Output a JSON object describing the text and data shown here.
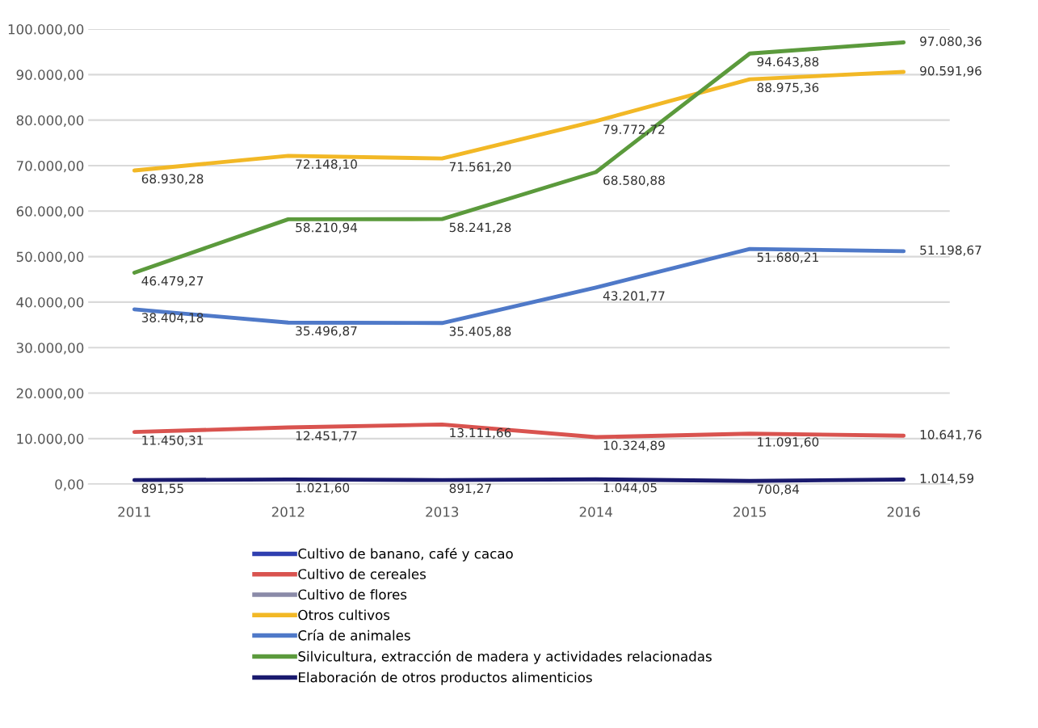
{
  "chart_data": {
    "type": "line",
    "categories": [
      "2011",
      "2012",
      "2013",
      "2014",
      "2015",
      "2016"
    ],
    "ylim": [
      0,
      100000
    ],
    "yticks": [
      {
        "value": 0,
        "label": "0,00"
      },
      {
        "value": 10000,
        "label": "10.000,00"
      },
      {
        "value": 20000,
        "label": "20.000,00"
      },
      {
        "value": 30000,
        "label": "30.000,00"
      },
      {
        "value": 40000,
        "label": "40.000,00"
      },
      {
        "value": 50000,
        "label": "50.000,00"
      },
      {
        "value": 60000,
        "label": "60.000,00"
      },
      {
        "value": 70000,
        "label": "70.000,00"
      },
      {
        "value": 80000,
        "label": "80.000,00"
      },
      {
        "value": 90000,
        "label": "90.000,00"
      },
      {
        "value": 100000,
        "label": "100.000,00"
      }
    ],
    "grid": "y",
    "legend": "bottom",
    "marker": "none",
    "line_style": "solid",
    "series": [
      {
        "name": "Cultivo de banano, café y cacao",
        "color": "#2f3fb0",
        "values": [
          null,
          null,
          null,
          null,
          null,
          null
        ]
      },
      {
        "name": "Cultivo de cereales",
        "color": "#d9534f",
        "values": [
          11450.31,
          12451.77,
          13111.66,
          10324.89,
          11091.6,
          10641.76
        ],
        "value_labels": [
          "11.450,31",
          "12.451,77",
          "13.111,66",
          "10.324,89",
          "11.091,60",
          "10.641,76"
        ]
      },
      {
        "name": "Cultivo de flores",
        "color": "#8a8aa8",
        "values": [
          null,
          null,
          null,
          null,
          null,
          null
        ]
      },
      {
        "name": "Otros cultivos",
        "color": "#f2b826",
        "values": [
          68930.28,
          72148.1,
          71561.2,
          79772.72,
          88975.36,
          90591.96
        ],
        "value_labels": [
          "68.930,28",
          "72.148,10",
          "71.561,20",
          "79.772,72",
          "88.975,36",
          "90.591,96"
        ]
      },
      {
        "name": "Cría de animales",
        "color": "#4f79c8",
        "values": [
          38404.18,
          35496.87,
          35405.88,
          43201.77,
          51680.21,
          51198.67
        ],
        "value_labels": [
          "38.404,18",
          "35.496,87",
          "35.405,88",
          "43.201,77",
          "51.680,21",
          "51.198,67"
        ]
      },
      {
        "name": "Silvicultura, extracción de madera y actividades relacionadas",
        "color": "#5b9a3c",
        "values": [
          46479.27,
          58210.94,
          58241.28,
          68580.88,
          94643.88,
          97080.36
        ],
        "value_labels": [
          "46.479,27",
          "58.210,94",
          "58.241,28",
          "68.580,88",
          "94.643,88",
          "97.080,36"
        ]
      },
      {
        "name": "Elaboración de otros productos alimenticios",
        "color": "#1a1a6e",
        "values": [
          891.55,
          1021.6,
          891.27,
          1044.05,
          700.84,
          1014.59
        ],
        "value_labels": [
          "891,55",
          "1.021,60",
          "891,27",
          "1.044,05",
          "700,84",
          "1.014,59"
        ]
      }
    ]
  }
}
